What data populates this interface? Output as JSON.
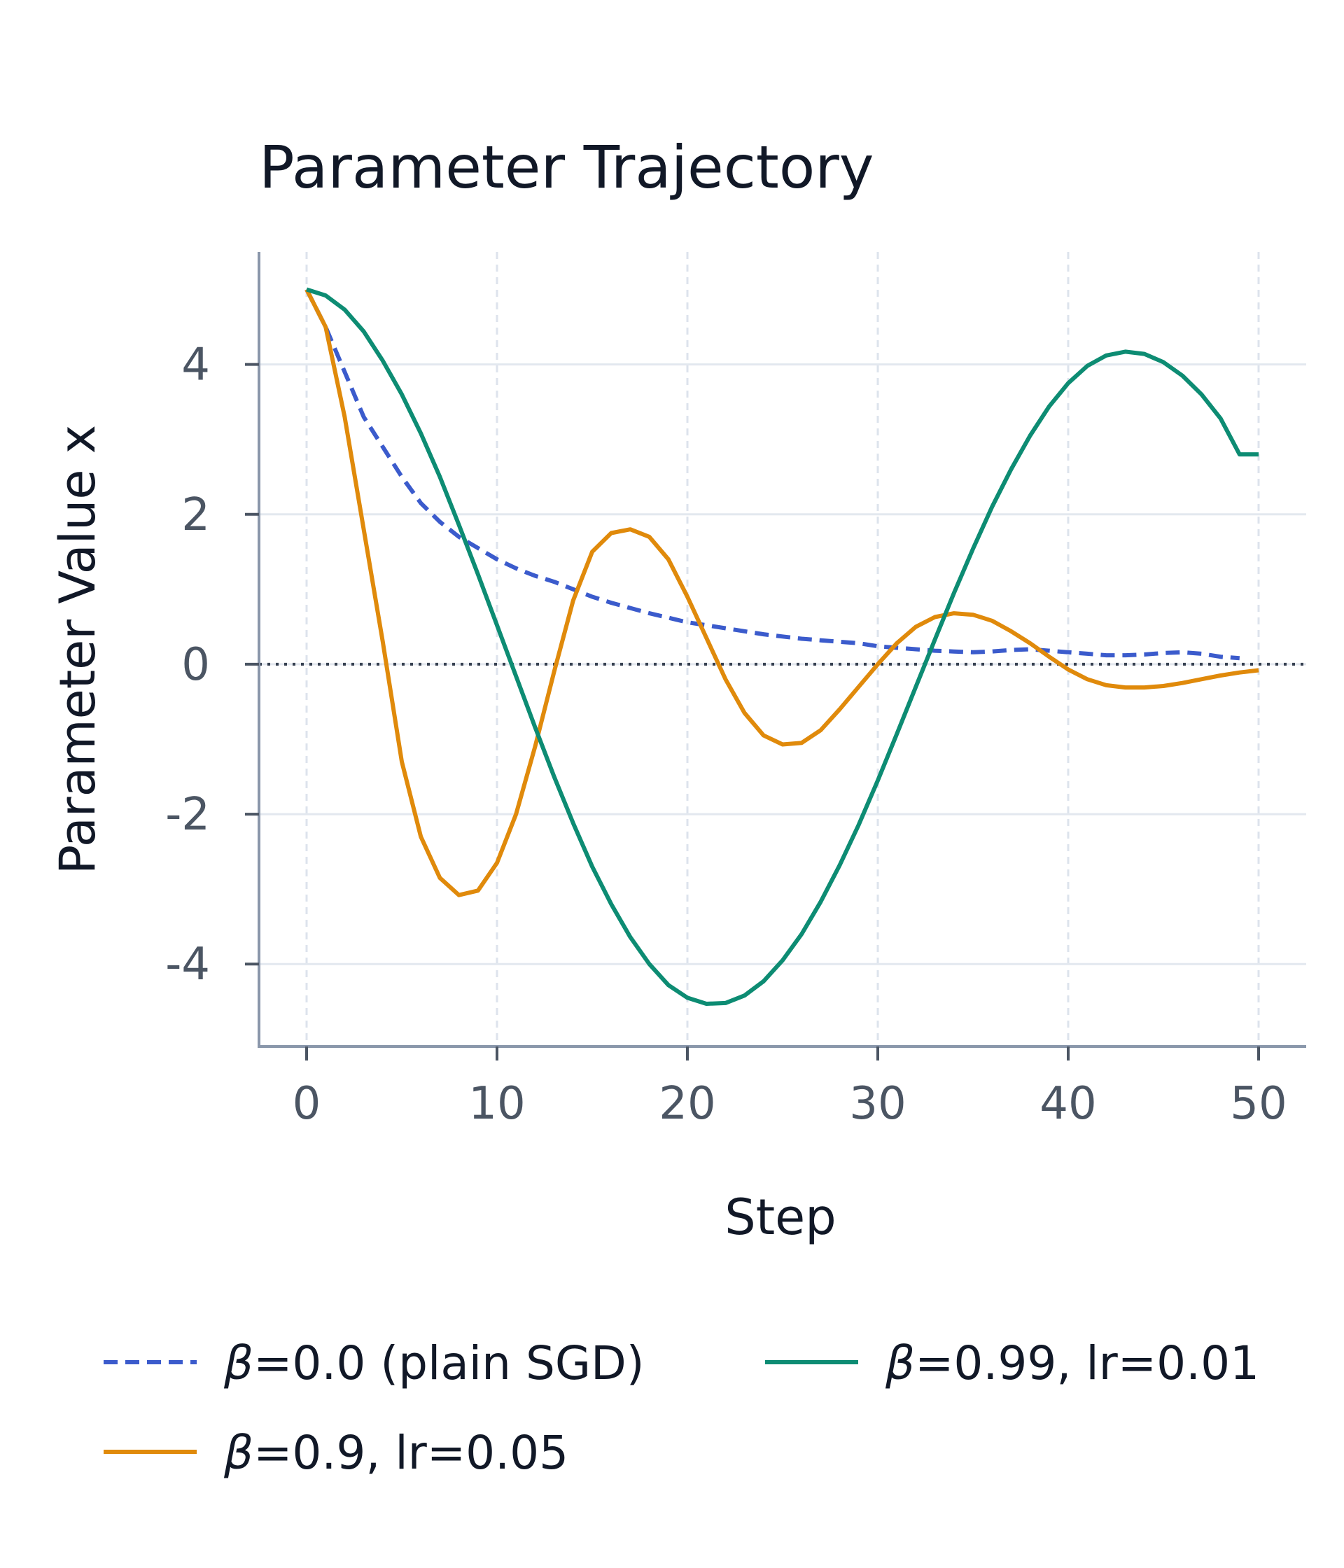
{
  "chart_data": {
    "type": "line",
    "title": "Parameter Trajectory",
    "xlabel": "Step",
    "ylabel": "Parameter Value x",
    "xlim": [
      -2.5,
      52.5
    ],
    "ylim": [
      -5.1,
      5.5
    ],
    "xticks": [
      0,
      10,
      20,
      30,
      40,
      50
    ],
    "xtick_labels": [
      "0",
      "10",
      "20",
      "30",
      "40",
      "50"
    ],
    "yticks": [
      4,
      2,
      0,
      -2,
      -4
    ],
    "ytick_labels": [
      "4",
      "2",
      "0",
      "-2",
      "-4"
    ],
    "grid": true,
    "reference_line": 0,
    "legend_position": "bottom",
    "series": [
      {
        "name": "β=0.0 (plain SGD)",
        "color": "#3b5bcc",
        "style": "dashed",
        "x": [
          0,
          1,
          2,
          3,
          4,
          5,
          6,
          7,
          8,
          9,
          10,
          11,
          12,
          13,
          14,
          15,
          16,
          17,
          18,
          19,
          20,
          21,
          22,
          23,
          24,
          25,
          26,
          27,
          28,
          29,
          30,
          31,
          32,
          33,
          34,
          35,
          36,
          37,
          38,
          39,
          40,
          41,
          42,
          43,
          44,
          45,
          46,
          47,
          48,
          49
        ],
        "y": [
          5.0,
          4.5,
          3.9,
          3.3,
          2.9,
          2.5,
          2.15,
          1.9,
          1.7,
          1.55,
          1.4,
          1.28,
          1.18,
          1.1,
          1.0,
          0.9,
          0.82,
          0.75,
          0.68,
          0.62,
          0.56,
          0.52,
          0.48,
          0.44,
          0.4,
          0.37,
          0.34,
          0.32,
          0.3,
          0.28,
          0.24,
          0.22,
          0.2,
          0.18,
          0.17,
          0.16,
          0.17,
          0.19,
          0.2,
          0.18,
          0.16,
          0.14,
          0.12,
          0.12,
          0.13,
          0.15,
          0.16,
          0.14,
          0.1,
          0.08
        ]
      },
      {
        "name": "β=0.9, lr=0.05",
        "color": "#e08a0b",
        "style": "solid",
        "x": [
          0,
          1,
          2,
          3,
          4,
          5,
          6,
          7,
          8,
          9,
          10,
          11,
          12,
          13,
          14,
          15,
          16,
          17,
          18,
          19,
          20,
          21,
          22,
          23,
          24,
          25,
          26,
          27,
          28,
          29,
          30,
          31,
          32,
          33,
          34,
          35,
          36,
          37,
          38,
          39,
          40,
          41,
          42,
          43,
          44,
          45,
          46,
          47,
          48,
          49,
          50
        ],
        "y": [
          5.0,
          4.5,
          3.3,
          1.8,
          0.3,
          -1.3,
          -2.3,
          -2.85,
          -3.08,
          -3.02,
          -2.65,
          -2.0,
          -1.1,
          -0.1,
          0.85,
          1.5,
          1.75,
          1.8,
          1.7,
          1.4,
          0.9,
          0.35,
          -0.2,
          -0.65,
          -0.95,
          -1.07,
          -1.05,
          -0.88,
          -0.6,
          -0.3,
          0.0,
          0.28,
          0.5,
          0.63,
          0.68,
          0.66,
          0.58,
          0.44,
          0.28,
          0.1,
          -0.07,
          -0.2,
          -0.28,
          -0.31,
          -0.31,
          -0.29,
          -0.25,
          -0.2,
          -0.15,
          -0.11,
          -0.08
        ]
      },
      {
        "name": "β=0.99, lr=0.01",
        "color": "#0d8c73",
        "style": "solid",
        "x": [
          0,
          1,
          2,
          3,
          4,
          5,
          6,
          7,
          8,
          9,
          10,
          11,
          12,
          13,
          14,
          15,
          16,
          17,
          18,
          19,
          20,
          21,
          22,
          23,
          24,
          25,
          26,
          27,
          28,
          29,
          30,
          31,
          32,
          33,
          34,
          35,
          36,
          37,
          38,
          39,
          40,
          41,
          42,
          43,
          44,
          45,
          46,
          47,
          48,
          49,
          50
        ],
        "y": [
          5.0,
          4.92,
          4.73,
          4.44,
          4.05,
          3.6,
          3.08,
          2.5,
          1.86,
          1.2,
          0.52,
          -0.16,
          -0.84,
          -1.5,
          -2.12,
          -2.7,
          -3.2,
          -3.64,
          -4.0,
          -4.28,
          -4.45,
          -4.53,
          -4.52,
          -4.42,
          -4.23,
          -3.95,
          -3.6,
          -3.17,
          -2.68,
          -2.14,
          -1.55,
          -0.93,
          -0.3,
          0.33,
          0.95,
          1.54,
          2.1,
          2.6,
          3.05,
          3.44,
          3.75,
          3.98,
          4.12,
          4.17,
          4.14,
          4.03,
          3.85,
          3.6,
          3.28,
          2.8,
          2.8
        ]
      }
    ]
  }
}
